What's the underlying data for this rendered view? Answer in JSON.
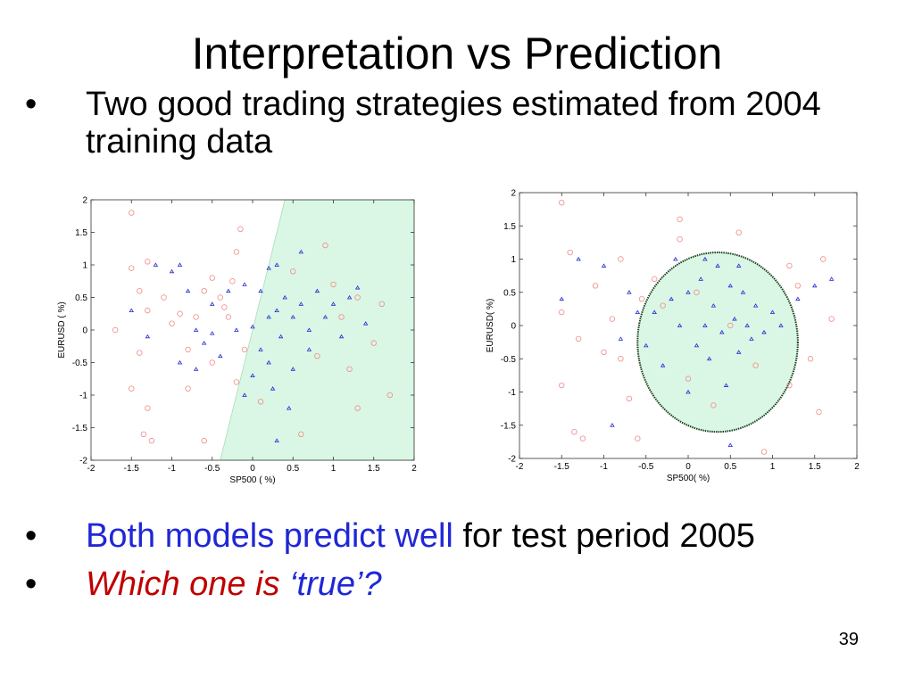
{
  "slide": {
    "title": "Interpretation vs Prediction",
    "bullets": [
      {
        "marker": "•",
        "text": "Two good trading strategies estimated from 2004 training data"
      },
      {
        "marker": "•",
        "text_blue": "Both models predict well",
        "text_plain": " for test period 2005"
      },
      {
        "marker": "•",
        "text_red": "Which one is ",
        "text_blue": "‘true’?"
      }
    ],
    "page_number": "39"
  },
  "colors": {
    "region_fill": "#d9f7e4",
    "positive_marker": "#1f27d6",
    "negative_marker": "#f08a8a",
    "boundary": "#1b3d1b"
  },
  "chart_data": [
    {
      "type": "scatter",
      "title": "",
      "xlabel": "SP500 ( %)",
      "ylabel": "EURUSD ( %)",
      "xlim": [
        -2,
        2
      ],
      "ylim": [
        -2,
        2
      ],
      "xticks": [
        "-2",
        "-1.5",
        "-1",
        "-0.5",
        "0",
        "0.5",
        "1",
        "1.5",
        "2"
      ],
      "yticks": [
        "-2",
        "-1.5",
        "-1",
        "-0.5",
        "0",
        "0.5",
        "1",
        "1.5",
        "2"
      ],
      "region": {
        "shape": "half-plane",
        "boundary_line": [
          [
            -0.4,
            -2
          ],
          [
            0.4,
            2
          ]
        ],
        "side": "right"
      },
      "series": [
        {
          "marker": "circle",
          "points": [
            [
              -1.5,
              1.8
            ],
            [
              -1.3,
              1.05
            ],
            [
              -1.5,
              0.95
            ],
            [
              -1.4,
              0.6
            ],
            [
              -1.3,
              0.3
            ],
            [
              -1.7,
              0
            ],
            [
              -1.4,
              -0.35
            ],
            [
              -1.5,
              -0.9
            ],
            [
              -1.3,
              -1.2
            ],
            [
              -1.35,
              -1.6
            ],
            [
              -1.25,
              -1.7
            ],
            [
              -1.1,
              0.5
            ],
            [
              -1.0,
              0.1
            ],
            [
              -0.9,
              0.25
            ],
            [
              -0.8,
              -0.3
            ],
            [
              -0.7,
              0.2
            ],
            [
              -0.6,
              0.6
            ],
            [
              -0.5,
              0.8
            ],
            [
              -0.4,
              0.5
            ],
            [
              -0.3,
              0.2
            ],
            [
              -0.2,
              1.2
            ],
            [
              -0.15,
              1.55
            ],
            [
              -0.1,
              -0.3
            ],
            [
              -0.6,
              -1.7
            ],
            [
              -0.5,
              -0.5
            ],
            [
              -0.2,
              -0.8
            ],
            [
              0.1,
              -1.1
            ],
            [
              0.5,
              0.9
            ],
            [
              0.8,
              -0.4
            ],
            [
              1.0,
              0.7
            ],
            [
              1.1,
              0.2
            ],
            [
              1.2,
              -0.6
            ],
            [
              1.3,
              0.5
            ],
            [
              1.3,
              -1.2
            ],
            [
              1.5,
              -0.2
            ],
            [
              1.6,
              0.4
            ],
            [
              1.7,
              -1.0
            ],
            [
              0.6,
              -1.6
            ],
            [
              0.9,
              1.3
            ],
            [
              -0.8,
              -0.9
            ],
            [
              -0.35,
              0.35
            ],
            [
              -0.25,
              0.75
            ]
          ]
        },
        {
          "marker": "triangle",
          "points": [
            [
              -1.5,
              0.3
            ],
            [
              -1.3,
              -0.1
            ],
            [
              -1.2,
              1.0
            ],
            [
              -1.0,
              0.9
            ],
            [
              -0.9,
              1.0
            ],
            [
              -0.9,
              -0.5
            ],
            [
              -0.8,
              0.6
            ],
            [
              -0.7,
              0.0
            ],
            [
              -0.6,
              -0.2
            ],
            [
              -0.5,
              0.4
            ],
            [
              -0.4,
              -0.4
            ],
            [
              -0.3,
              0.6
            ],
            [
              -0.2,
              0.0
            ],
            [
              -0.1,
              0.7
            ],
            [
              0.0,
              0.05
            ],
            [
              0.1,
              -0.3
            ],
            [
              0.1,
              0.6
            ],
            [
              0.2,
              0.2
            ],
            [
              0.2,
              -0.5
            ],
            [
              0.3,
              1.0
            ],
            [
              0.3,
              0.3
            ],
            [
              0.35,
              -0.1
            ],
            [
              0.4,
              0.5
            ],
            [
              0.45,
              -1.2
            ],
            [
              0.5,
              0.2
            ],
            [
              0.5,
              -0.6
            ],
            [
              0.6,
              0.4
            ],
            [
              0.7,
              0.0
            ],
            [
              0.7,
              -0.3
            ],
            [
              0.8,
              0.6
            ],
            [
              0.9,
              0.2
            ],
            [
              1.0,
              0.4
            ],
            [
              1.1,
              -0.1
            ],
            [
              1.2,
              0.5
            ],
            [
              1.3,
              0.65
            ],
            [
              1.4,
              0.1
            ],
            [
              0.0,
              -0.7
            ],
            [
              -0.1,
              -1.0
            ],
            [
              0.2,
              0.95
            ],
            [
              0.6,
              1.2
            ],
            [
              0.25,
              -0.9
            ],
            [
              -0.5,
              -0.05
            ],
            [
              -0.7,
              -0.6
            ],
            [
              0.3,
              -1.7
            ]
          ]
        }
      ]
    },
    {
      "type": "scatter",
      "title": "",
      "xlabel": "SP500( %)",
      "ylabel": "EURUSD( %)",
      "xlim": [
        -2,
        2
      ],
      "ylim": [
        -2,
        2
      ],
      "xticks": [
        "-2",
        "-1.5",
        "-1",
        "-0.5",
        "0",
        "0.5",
        "1",
        "1.5",
        "2"
      ],
      "yticks": [
        "-2",
        "-1.5",
        "-1",
        "-0.5",
        "0",
        "0.5",
        "1",
        "1.5",
        "2"
      ],
      "region": {
        "shape": "ellipse",
        "center": [
          0.35,
          -0.25
        ],
        "radius_x": 0.95,
        "radius_y": 1.35
      },
      "series": [
        {
          "marker": "circle",
          "points": [
            [
              -1.5,
              1.85
            ],
            [
              -1.4,
              1.1
            ],
            [
              -1.5,
              0.2
            ],
            [
              -1.3,
              -0.2
            ],
            [
              -1.5,
              -0.9
            ],
            [
              -1.35,
              -1.6
            ],
            [
              -1.25,
              -1.7
            ],
            [
              -1.1,
              0.6
            ],
            [
              -1.0,
              -0.4
            ],
            [
              -0.9,
              0.1
            ],
            [
              -0.8,
              1.0
            ],
            [
              -0.7,
              -1.1
            ],
            [
              -0.6,
              -1.7
            ],
            [
              -0.55,
              0.4
            ],
            [
              -0.4,
              0.7
            ],
            [
              -0.1,
              1.6
            ],
            [
              -0.1,
              1.3
            ],
            [
              0.1,
              0.5
            ],
            [
              0.3,
              -1.2
            ],
            [
              0.6,
              1.4
            ],
            [
              0.8,
              -0.6
            ],
            [
              1.2,
              -0.9
            ],
            [
              1.3,
              0.6
            ],
            [
              1.45,
              -0.5
            ],
            [
              1.6,
              1.0
            ],
            [
              1.7,
              0.1
            ],
            [
              1.55,
              -1.3
            ],
            [
              0.9,
              -1.9
            ],
            [
              -0.8,
              -0.5
            ],
            [
              0.0,
              -0.8
            ],
            [
              0.5,
              0.0
            ],
            [
              -0.3,
              0.3
            ],
            [
              1.2,
              0.9
            ]
          ]
        },
        {
          "marker": "triangle",
          "points": [
            [
              -1.5,
              0.4
            ],
            [
              -1.3,
              1.0
            ],
            [
              -1.0,
              0.9
            ],
            [
              -0.9,
              -1.5
            ],
            [
              -0.8,
              -0.2
            ],
            [
              -0.7,
              0.5
            ],
            [
              -0.6,
              0.2
            ],
            [
              -0.5,
              -0.3
            ],
            [
              -0.4,
              0.2
            ],
            [
              -0.3,
              -0.6
            ],
            [
              -0.2,
              0.4
            ],
            [
              -0.1,
              0.0
            ],
            [
              0.0,
              0.5
            ],
            [
              0.1,
              -0.3
            ],
            [
              0.15,
              0.7
            ],
            [
              0.2,
              0.0
            ],
            [
              0.25,
              -0.5
            ],
            [
              0.3,
              0.3
            ],
            [
              0.35,
              0.9
            ],
            [
              0.4,
              -0.1
            ],
            [
              0.45,
              -0.9
            ],
            [
              0.5,
              0.6
            ],
            [
              0.55,
              0.1
            ],
            [
              0.6,
              -0.4
            ],
            [
              0.65,
              0.5
            ],
            [
              0.7,
              0.0
            ],
            [
              0.75,
              -0.2
            ],
            [
              0.8,
              0.3
            ],
            [
              0.9,
              -0.1
            ],
            [
              1.0,
              0.2
            ],
            [
              1.1,
              0.0
            ],
            [
              1.3,
              0.4
            ],
            [
              1.5,
              0.6
            ],
            [
              1.7,
              0.7
            ],
            [
              0.5,
              -1.8
            ],
            [
              -0.15,
              1.0
            ],
            [
              0.2,
              1.0
            ],
            [
              0.0,
              -1.0
            ],
            [
              0.6,
              0.9
            ]
          ]
        }
      ]
    }
  ]
}
